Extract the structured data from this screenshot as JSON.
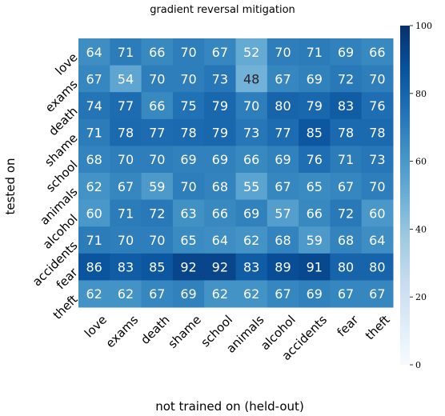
{
  "chart_data": {
    "type": "heatmap",
    "title": "gradient reversal mitigation",
    "xlabel": "not trained on (held-out)",
    "ylabel": "tested on",
    "x_categories": [
      "love",
      "exams",
      "death",
      "shame",
      "school",
      "animals",
      "alcohol",
      "accidents",
      "fear",
      "theft"
    ],
    "y_categories": [
      "love",
      "exams",
      "death",
      "shame",
      "school",
      "animals",
      "alcohol",
      "accidents",
      "fear",
      "theft"
    ],
    "values": [
      [
        64,
        71,
        66,
        70,
        67,
        52,
        70,
        71,
        69,
        66
      ],
      [
        67,
        54,
        70,
        70,
        73,
        48,
        67,
        69,
        72,
        70
      ],
      [
        74,
        77,
        66,
        75,
        79,
        70,
        80,
        79,
        83,
        76
      ],
      [
        71,
        78,
        77,
        78,
        79,
        73,
        77,
        85,
        78,
        78
      ],
      [
        68,
        70,
        70,
        69,
        69,
        66,
        69,
        76,
        71,
        73
      ],
      [
        62,
        67,
        59,
        70,
        68,
        55,
        67,
        65,
        67,
        70
      ],
      [
        60,
        71,
        72,
        63,
        66,
        69,
        57,
        66,
        72,
        60
      ],
      [
        71,
        70,
        70,
        65,
        64,
        62,
        68,
        59,
        68,
        64
      ],
      [
        86,
        83,
        85,
        92,
        92,
        83,
        89,
        91,
        80,
        80
      ],
      [
        62,
        62,
        67,
        69,
        62,
        62,
        67,
        69,
        67,
        67
      ]
    ],
    "vmin": 0,
    "vmax": 100,
    "colormap": "Blues",
    "colorbar_ticks": [
      "0",
      "20",
      "40",
      "60",
      "80",
      "100"
    ],
    "grid": false
  }
}
